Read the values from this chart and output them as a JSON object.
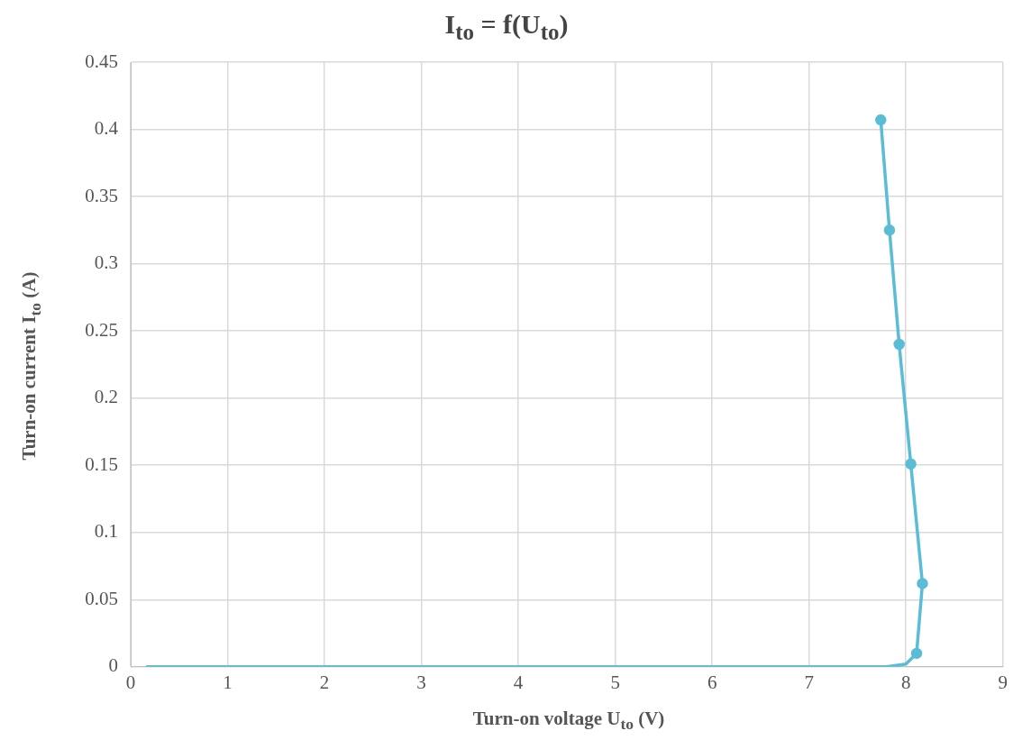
{
  "chart_data": {
    "type": "line",
    "title": "I$_{to}$ = f(U$_{to}$)",
    "xlabel": "Turn-on voltage U$_{to}$ (V)",
    "ylabel": "Turn-on current I$_{to}$ (A)",
    "series": [
      {
        "color": "#5bbcd6",
        "marker": "none",
        "x": [
          0.17,
          7.5,
          7.8,
          8.0,
          8.11
        ],
        "values": [
          0,
          0,
          0,
          0.002,
          0.01
        ]
      },
      {
        "color": "#5bbcd6",
        "marker": "circle",
        "x": [
          8.11,
          8.17,
          8.05,
          7.93,
          7.83,
          7.74
        ],
        "values": [
          0.01,
          0.062,
          0.151,
          0.24,
          0.325,
          0.407
        ]
      }
    ],
    "xlim": [
      0,
      9
    ],
    "xticks": [
      0,
      1,
      2,
      3,
      4,
      5,
      6,
      7,
      8,
      9
    ],
    "ylim": [
      0,
      0.45
    ],
    "yticks": [
      0,
      0.05,
      0.1,
      0.15,
      0.2,
      0.25,
      0.3,
      0.35,
      0.4,
      0.45
    ],
    "grid": true,
    "legend": false
  }
}
